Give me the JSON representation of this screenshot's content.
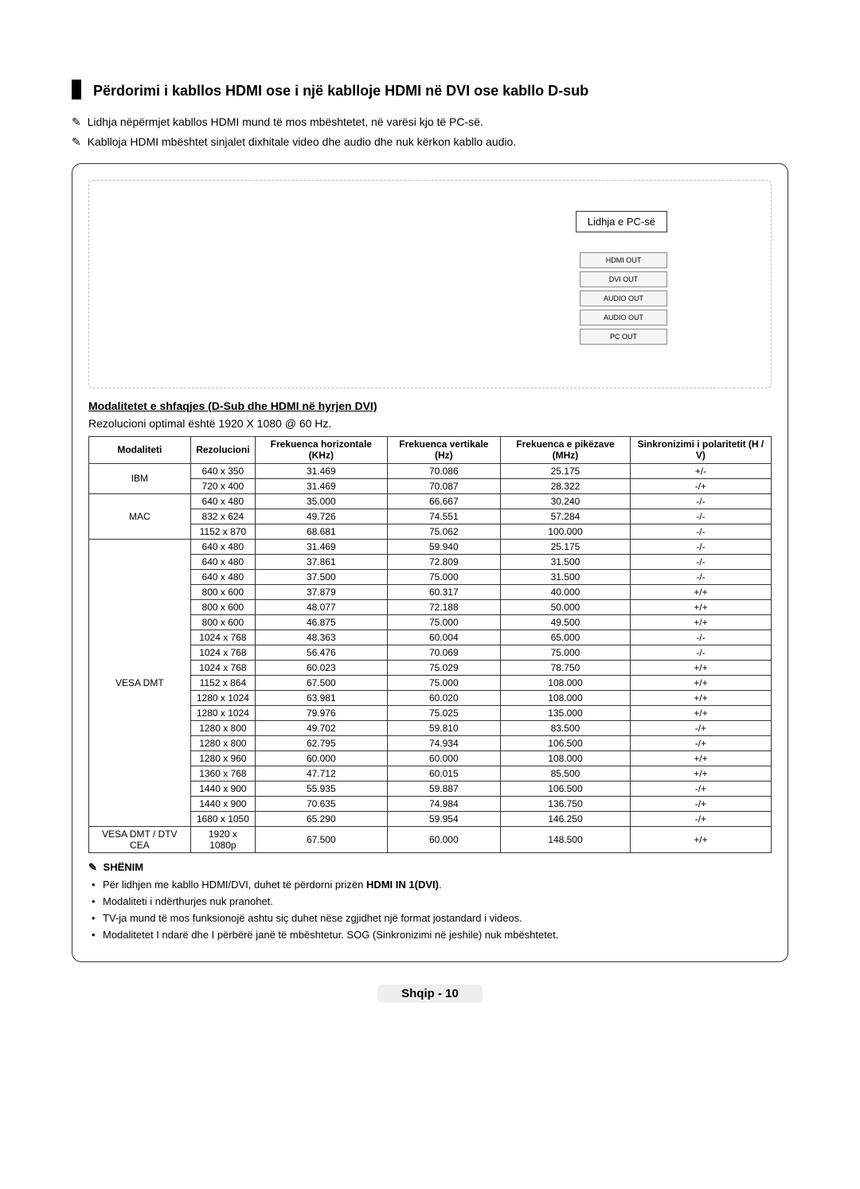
{
  "title": "Përdorimi i kabllos HDMI ose i një kablloje HDMI në DVI ose kabllo D-sub",
  "notes_top": [
    "Lidhja nëpërmjet kabllos HDMI mund të mos mbështetet, në varësi kjo të PC-së.",
    "Kablloja HDMI mbështet sinjalet dixhitale video dhe audio dhe nuk kërkon kabllo audio."
  ],
  "diagram": {
    "pc_connection_label": "Lidhja e PC-së",
    "ports": [
      "HDMI OUT",
      "DVI OUT",
      "AUDIO OUT",
      "AUDIO OUT",
      "PC OUT"
    ]
  },
  "modes_header": "Modalitetet e shfaqjes (D-Sub dhe HDMI në hyrjen DVI)",
  "optimal_resolution_text": "Rezolucioni optimal është 1920 X 1080 @ 60 Hz.",
  "table": {
    "columns": [
      "Modaliteti",
      "Rezolucioni",
      "Frekuenca horizontale (KHz)",
      "Frekuenca vertikale (Hz)",
      "Frekuenca e pikëzave (MHz)",
      "Sinkronizimi i polaritetit (H / V)"
    ],
    "groups": [
      {
        "label": "IBM",
        "rows": [
          [
            "640 x 350",
            "31.469",
            "70.086",
            "25.175",
            "+/-"
          ],
          [
            "720 x 400",
            "31.469",
            "70.087",
            "28.322",
            "-/+"
          ]
        ]
      },
      {
        "label": "MAC",
        "rows": [
          [
            "640 x 480",
            "35.000",
            "66.667",
            "30.240",
            "-/-"
          ],
          [
            "832 x 624",
            "49.726",
            "74.551",
            "57.284",
            "-/-"
          ],
          [
            "1152 x 870",
            "68.681",
            "75.062",
            "100.000",
            "-/-"
          ]
        ]
      },
      {
        "label": "VESA DMT",
        "rows": [
          [
            "640 x 480",
            "31.469",
            "59.940",
            "25.175",
            "-/-"
          ],
          [
            "640 x 480",
            "37.861",
            "72.809",
            "31.500",
            "-/-"
          ],
          [
            "640 x 480",
            "37.500",
            "75.000",
            "31.500",
            "-/-"
          ],
          [
            "800 x 600",
            "37.879",
            "60.317",
            "40.000",
            "+/+"
          ],
          [
            "800 x 600",
            "48.077",
            "72.188",
            "50.000",
            "+/+"
          ],
          [
            "800 x 600",
            "46.875",
            "75.000",
            "49.500",
            "+/+"
          ],
          [
            "1024 x 768",
            "48.363",
            "60.004",
            "65.000",
            "-/-"
          ],
          [
            "1024 x 768",
            "56.476",
            "70.069",
            "75.000",
            "-/-"
          ],
          [
            "1024 x 768",
            "60.023",
            "75.029",
            "78.750",
            "+/+"
          ],
          [
            "1152 x 864",
            "67.500",
            "75.000",
            "108.000",
            "+/+"
          ],
          [
            "1280 x 1024",
            "63.981",
            "60.020",
            "108.000",
            "+/+"
          ],
          [
            "1280 x 1024",
            "79.976",
            "75.025",
            "135.000",
            "+/+"
          ],
          [
            "1280 x 800",
            "49.702",
            "59.810",
            "83.500",
            "-/+"
          ],
          [
            "1280 x 800",
            "62.795",
            "74.934",
            "106.500",
            "-/+"
          ],
          [
            "1280 x 960",
            "60.000",
            "60.000",
            "108.000",
            "+/+"
          ],
          [
            "1360 x 768",
            "47.712",
            "60.015",
            "85.500",
            "+/+"
          ],
          [
            "1440 x 900",
            "55.935",
            "59.887",
            "106.500",
            "-/+"
          ],
          [
            "1440 x 900",
            "70.635",
            "74.984",
            "136.750",
            "-/+"
          ],
          [
            "1680 x 1050",
            "65.290",
            "59.954",
            "146.250",
            "-/+"
          ]
        ]
      },
      {
        "label": "VESA DMT / DTV CEA",
        "rows": [
          [
            "1920 x 1080p",
            "67.500",
            "60.000",
            "148.500",
            "+/+"
          ]
        ]
      }
    ]
  },
  "notes_bottom": {
    "title": "SHËNIM",
    "items": [
      {
        "pre": "Për lidhjen me kabllo HDMI/DVI, duhet të përdorni prizën ",
        "bold": "HDMI IN 1(DVI)",
        "post": "."
      },
      {
        "pre": "Modaliteti i ndërthurjes nuk pranohet.",
        "bold": "",
        "post": ""
      },
      {
        "pre": "TV-ja mund të mos funksionojë ashtu siç duhet nëse zgjidhet një format jostandard i videos.",
        "bold": "",
        "post": ""
      },
      {
        "pre": "Modalitetet I ndarë dhe I përbërë janë të mbështetur. SOG (Sinkronizimi në jeshile) nuk mbështetet.",
        "bold": "",
        "post": ""
      }
    ]
  },
  "footer": {
    "language": "Shqip",
    "sep": " - ",
    "page": "10"
  }
}
